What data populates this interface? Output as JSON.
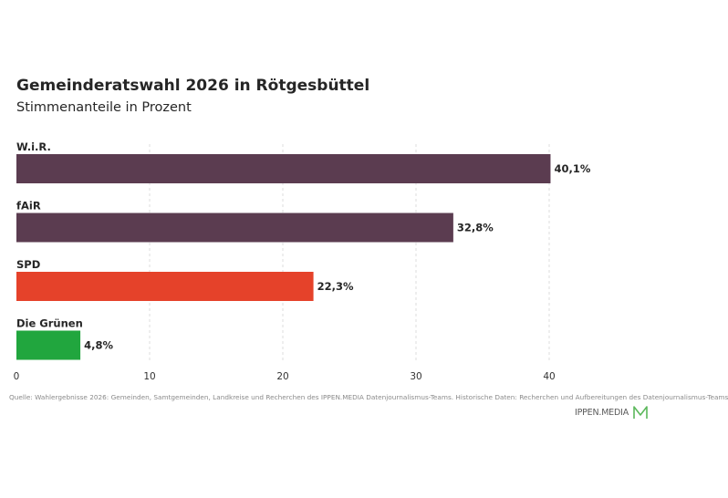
{
  "title": "Gemeinderatswahl 2026 in Rötgesbüttel",
  "subtitle": "Stimmenanteile in Prozent",
  "source": "Quelle: Wahlergebnisse 2026: Gemeinden, Samtgemeinden, Landkreise und Recherchen des IPPEN.MEDIA Datenjournalismus-Teams. Historische Daten: Recherchen und Aufbereitungen des Datenjournalismus-Teams",
  "brand": {
    "name": "IPPEN.MEDIA",
    "icon": "ippen-media-logo-icon",
    "color": "#5cb85c"
  },
  "chart_data": {
    "type": "bar",
    "orientation": "horizontal",
    "categories": [
      "W.i.R.",
      "fAiR",
      "SPD",
      "Die Grünen"
    ],
    "values": [
      40.1,
      32.8,
      22.3,
      4.8
    ],
    "value_labels": [
      "40,1%",
      "32,8%",
      "22,3%",
      "4,8%"
    ],
    "colors": [
      "#5b3c50",
      "#5b3c50",
      "#e5422a",
      "#21a63e"
    ],
    "xlim": [
      0,
      40
    ],
    "x_ticks": [
      0,
      10,
      20,
      30,
      40
    ],
    "grid": "vertical dashed"
  }
}
